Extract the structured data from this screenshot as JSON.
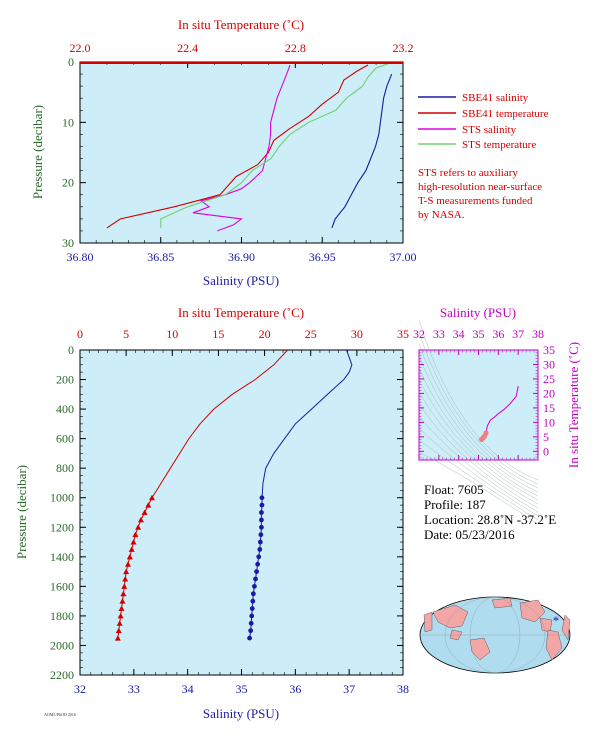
{
  "colors": {
    "panel_bg": "#cdeef8",
    "salinity": "#1a1aa6",
    "temperature": "#d40000",
    "sts_salinity": "#e000e0",
    "sts_temperature": "#70d070",
    "pressure_axis": "#2a6a2a",
    "ts_axis": "#c000c0"
  },
  "chart_data": [
    {
      "id": "upper",
      "type": "line",
      "xlabel_bottom": "Salinity (PSU)",
      "xlabel_top": "In situ Temperature (˚C)",
      "ylabel": "Pressure (decibar)",
      "xlim_bottom": [
        36.8,
        37.0
      ],
      "xlim_top": [
        22.0,
        23.2
      ],
      "ylim": [
        30,
        0
      ],
      "xticks_bottom": [
        "36.80",
        "36.85",
        "36.90",
        "36.95",
        "37.00"
      ],
      "xticks_top": [
        "22.0",
        "22.4",
        "22.8",
        "23.2"
      ],
      "yticks": [
        "0",
        "10",
        "20",
        "30"
      ],
      "legend": [
        {
          "label": "SBE41 salinity",
          "color": "#1a1aa6"
        },
        {
          "label": "SBE41 temperature",
          "color": "#d40000"
        },
        {
          "label": "STS salinity",
          "color": "#e000e0"
        },
        {
          "label": "STS temperature",
          "color": "#70d070"
        }
      ],
      "note": [
        "STS refers to auxiliary",
        "high-resolution near-surface",
        "T-S measurements funded",
        "by NASA."
      ],
      "series": [
        {
          "name": "SBE41 salinity",
          "axis": "salinity",
          "p": [
            2,
            4,
            6,
            8,
            10,
            12,
            14,
            16,
            18,
            20,
            22,
            24,
            26,
            27.5
          ],
          "v": [
            36.993,
            36.99,
            36.988,
            36.987,
            36.986,
            36.985,
            36.983,
            36.98,
            36.977,
            36.972,
            36.968,
            36.964,
            36.958,
            36.956
          ]
        },
        {
          "name": "SBE41 temperature",
          "axis": "temperature",
          "p": [
            0.5,
            1.5,
            3,
            5,
            7,
            9,
            11,
            13,
            15,
            17,
            19,
            20.5,
            22,
            24,
            26,
            27.5
          ],
          "v": [
            23.07,
            23.03,
            22.98,
            22.96,
            22.9,
            22.85,
            22.78,
            22.72,
            22.7,
            22.66,
            22.58,
            22.55,
            22.52,
            22.35,
            22.15,
            22.1
          ]
        },
        {
          "name": "STS salinity",
          "axis": "salinity",
          "p": [
            0.5,
            2,
            4,
            6,
            8,
            10,
            12,
            14,
            16,
            18,
            20,
            21,
            22,
            23,
            24,
            25,
            26,
            27,
            28
          ],
          "v": [
            36.93,
            36.928,
            36.925,
            36.922,
            36.92,
            36.918,
            36.918,
            36.917,
            36.915,
            36.913,
            36.905,
            36.9,
            36.89,
            36.875,
            36.88,
            36.87,
            36.9,
            36.895,
            36.885
          ]
        },
        {
          "name": "STS temperature",
          "axis": "temperature",
          "p": [
            0.2,
            1,
            2.5,
            4,
            6,
            8,
            10,
            12,
            14,
            16,
            18,
            20,
            22,
            24,
            26,
            27.5
          ],
          "v": [
            23.15,
            23.1,
            23.07,
            23.05,
            22.99,
            22.95,
            22.85,
            22.78,
            22.74,
            22.71,
            22.64,
            22.6,
            22.54,
            22.4,
            22.3,
            22.3
          ]
        }
      ]
    },
    {
      "id": "lower",
      "type": "line",
      "xlabel_bottom": "Salinity (PSU)",
      "xlabel_top": "In situ Temperature (˚C)",
      "ylabel": "Pressure (decibar)",
      "xlim_bottom": [
        32,
        38
      ],
      "xlim_top": [
        0,
        35
      ],
      "ylim": [
        2200,
        0
      ],
      "xticks_bottom": [
        "32",
        "33",
        "34",
        "35",
        "36",
        "37",
        "38"
      ],
      "xticks_top": [
        "0",
        "5",
        "10",
        "15",
        "20",
        "25",
        "30",
        "35"
      ],
      "yticks": [
        "0",
        "200",
        "400",
        "600",
        "800",
        "1000",
        "1200",
        "1400",
        "1600",
        "1800",
        "2000",
        "2200"
      ],
      "series": [
        {
          "name": "Salinity",
          "axis": "salinity",
          "marker": "circle",
          "p": [
            0,
            50,
            100,
            150,
            200,
            300,
            400,
            500,
            600,
            700,
            800,
            900,
            1000,
            1050,
            1100,
            1150,
            1200,
            1250,
            1300,
            1350,
            1400,
            1450,
            1500,
            1550,
            1600,
            1650,
            1700,
            1750,
            1800,
            1850,
            1900,
            1950
          ],
          "v": [
            36.95,
            37.0,
            37.05,
            37.0,
            36.9,
            36.6,
            36.3,
            36.0,
            35.8,
            35.6,
            35.45,
            35.4,
            35.38,
            35.38,
            35.37,
            35.37,
            35.37,
            35.36,
            35.35,
            35.34,
            35.32,
            35.3,
            35.28,
            35.26,
            35.24,
            35.22,
            35.21,
            35.2,
            35.19,
            35.18,
            35.17,
            35.15
          ]
        },
        {
          "name": "Temperature",
          "axis": "temperature",
          "marker": "triangle",
          "p": [
            0,
            100,
            200,
            300,
            400,
            500,
            600,
            700,
            800,
            900,
            1000,
            1050,
            1100,
            1150,
            1200,
            1250,
            1300,
            1350,
            1400,
            1450,
            1500,
            1550,
            1600,
            1650,
            1700,
            1750,
            1800,
            1850,
            1900,
            1950
          ],
          "v": [
            22.5,
            21.0,
            19.0,
            16.5,
            14.5,
            13.0,
            11.8,
            10.8,
            9.8,
            8.8,
            7.8,
            7.4,
            7.0,
            6.6,
            6.3,
            6.0,
            5.8,
            5.6,
            5.4,
            5.2,
            5.0,
            4.9,
            4.8,
            4.7,
            4.6,
            4.5,
            4.4,
            4.3,
            4.2,
            4.1
          ]
        }
      ]
    },
    {
      "id": "ts",
      "type": "scatter",
      "xlabel_top": "Salinity (PSU)",
      "ylabel": "In situ Temperature (˚C)",
      "xlim": [
        32,
        38
      ],
      "ylim": [
        -3,
        35
      ],
      "xticks": [
        "32",
        "33",
        "34",
        "35",
        "36",
        "37",
        "38"
      ],
      "yticks": [
        "0",
        "5",
        "10",
        "15",
        "20",
        "25",
        "30",
        "35"
      ],
      "series": [
        {
          "name": "T-S",
          "s": [
            35.15,
            35.2,
            35.25,
            35.3,
            35.38,
            35.45,
            35.6,
            35.8,
            36.0,
            36.3,
            36.6,
            36.9,
            37.0
          ],
          "t": [
            4.1,
            4.4,
            4.8,
            5.2,
            6.3,
            8.8,
            10.8,
            11.8,
            13.0,
            14.5,
            16.5,
            19.0,
            22.5
          ]
        }
      ]
    }
  ],
  "info": {
    "float": "Float:  7605",
    "profile": "Profile:  187",
    "location": "Location:  28.8˚N  -37.2˚E",
    "date": "Date:  05/23/2016"
  },
  "map": {
    "marker": "*",
    "lat": 28.8,
    "lon": -37.2
  }
}
